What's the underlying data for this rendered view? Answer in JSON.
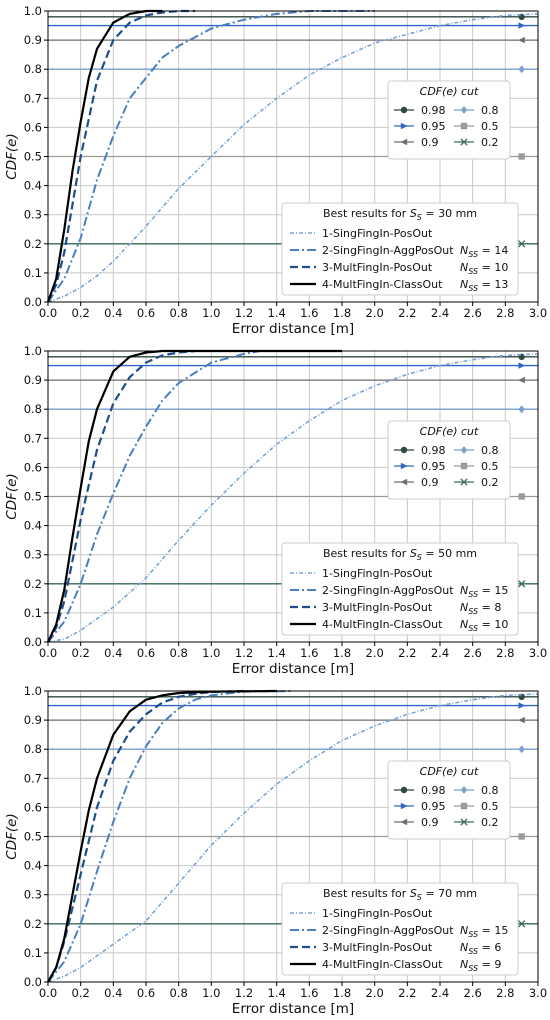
{
  "colors": {
    "c1": "#7ca3d8",
    "c2": "#4a7fc0",
    "c3": "#1f4e8c",
    "c4": "#000000",
    "cut98": "#2d4a45",
    "cut95": "#2f66c8",
    "cut90": "#707070",
    "cut80": "#7aa0d0",
    "cut50": "#9a9a9a",
    "cut20": "#3a6b5a",
    "grid": "#c8c8c8"
  },
  "chart_data": [
    {
      "type": "line",
      "xlabel": "Error distance [m]",
      "ylabel": "CDF(e)",
      "xlim": [
        0,
        3.0
      ],
      "ylim": [
        0,
        1.0
      ],
      "xticks": [
        "0.0",
        "0.2",
        "0.4",
        "0.6",
        "0.8",
        "1.0",
        "1.2",
        "1.4",
        "1.6",
        "1.8",
        "2.0",
        "2.2",
        "2.4",
        "2.6",
        "2.8",
        "3.0"
      ],
      "yticks": [
        "0.0",
        "0.1",
        "0.2",
        "0.3",
        "0.4",
        "0.5",
        "0.6",
        "0.7",
        "0.8",
        "0.9",
        "1.0"
      ],
      "grid": true,
      "legend_cut": {
        "title": "CDF(e) cut",
        "position": "center-right",
        "entries": [
          {
            "label": "0.98",
            "level": 0.98,
            "marker": "circle",
            "color_key": "cut98"
          },
          {
            "label": "0.8",
            "level": 0.8,
            "marker": "diamond",
            "color_key": "cut80"
          },
          {
            "label": "0.95",
            "level": 0.95,
            "marker": "triangle-right",
            "color_key": "cut95"
          },
          {
            "label": "0.5",
            "level": 0.5,
            "marker": "square",
            "color_key": "cut50"
          },
          {
            "label": "0.9",
            "level": 0.9,
            "marker": "triangle-left",
            "color_key": "cut90"
          },
          {
            "label": "0.2",
            "level": 0.2,
            "marker": "x",
            "color_key": "cut20"
          }
        ]
      },
      "legend_best": {
        "title": "Best results for S_S = 30 mm",
        "title_pre": "Best results for ",
        "title_var": "S",
        "title_sub": "S",
        "title_post": " = 30 mm",
        "position": "lower-right",
        "entries": [
          {
            "label": "1-SingFingIn-PosOut",
            "nss": ""
          },
          {
            "label": "2-SingFingIn-AggPosOut",
            "nss": "14"
          },
          {
            "label": "3-MultFingIn-PosOut",
            "nss": "10"
          },
          {
            "label": "4-MultFingIn-ClassOut",
            "nss": "13"
          }
        ]
      },
      "series": [
        {
          "name": "1-SingFingIn-PosOut",
          "style": "dotdash-fine",
          "color_key": "c1",
          "x": [
            0,
            0.1,
            0.2,
            0.3,
            0.4,
            0.5,
            0.6,
            0.8,
            1.0,
            1.2,
            1.4,
            1.6,
            1.8,
            2.0,
            2.2,
            2.4,
            2.6,
            2.8,
            3.0
          ],
          "y": [
            0,
            0.02,
            0.05,
            0.09,
            0.14,
            0.2,
            0.26,
            0.39,
            0.5,
            0.61,
            0.7,
            0.78,
            0.84,
            0.89,
            0.92,
            0.95,
            0.97,
            0.985,
            0.99
          ]
        },
        {
          "name": "2-SingFingIn-AggPosOut",
          "style": "dashdot",
          "color_key": "c2",
          "x": [
            0,
            0.1,
            0.2,
            0.3,
            0.4,
            0.5,
            0.6,
            0.7,
            0.8,
            1.0,
            1.2,
            1.4,
            1.6,
            1.8,
            2.0
          ],
          "y": [
            0,
            0.08,
            0.22,
            0.42,
            0.57,
            0.7,
            0.77,
            0.84,
            0.88,
            0.94,
            0.97,
            0.99,
            1.0,
            1.0,
            1.0
          ]
        },
        {
          "name": "3-MultFingIn-PosOut",
          "style": "dashed",
          "color_key": "c3",
          "x": [
            0,
            0.05,
            0.1,
            0.2,
            0.3,
            0.4,
            0.5,
            0.6,
            0.7,
            0.8,
            0.9
          ],
          "y": [
            0,
            0.06,
            0.17,
            0.5,
            0.76,
            0.9,
            0.96,
            0.985,
            0.995,
            1.0,
            1.0
          ]
        },
        {
          "name": "4-MultFingIn-ClassOut",
          "style": "solid",
          "color_key": "c4",
          "x": [
            0,
            0.05,
            0.1,
            0.15,
            0.2,
            0.25,
            0.3,
            0.4,
            0.5,
            0.6,
            0.7
          ],
          "y": [
            0,
            0.08,
            0.25,
            0.45,
            0.62,
            0.77,
            0.87,
            0.96,
            0.99,
            1.0,
            1.0
          ]
        }
      ]
    },
    {
      "type": "line",
      "xlabel": "Error distance [m]",
      "ylabel": "CDF(e)",
      "xlim": [
        0,
        3.0
      ],
      "ylim": [
        0,
        1.0
      ],
      "xticks": [
        "0.0",
        "0.2",
        "0.4",
        "0.6",
        "0.8",
        "1.0",
        "1.2",
        "1.4",
        "1.6",
        "1.8",
        "2.0",
        "2.2",
        "2.4",
        "2.6",
        "2.8",
        "3.0"
      ],
      "yticks": [
        "0.0",
        "0.1",
        "0.2",
        "0.3",
        "0.4",
        "0.5",
        "0.6",
        "0.7",
        "0.8",
        "0.9",
        "1.0"
      ],
      "grid": true,
      "legend_cut": {
        "title": "CDF(e) cut",
        "position": "center-right",
        "entries": [
          {
            "label": "0.98",
            "level": 0.98,
            "marker": "circle",
            "color_key": "cut98"
          },
          {
            "label": "0.8",
            "level": 0.8,
            "marker": "diamond",
            "color_key": "cut80"
          },
          {
            "label": "0.95",
            "level": 0.95,
            "marker": "triangle-right",
            "color_key": "cut95"
          },
          {
            "label": "0.5",
            "level": 0.5,
            "marker": "square",
            "color_key": "cut50"
          },
          {
            "label": "0.9",
            "level": 0.9,
            "marker": "triangle-left",
            "color_key": "cut90"
          },
          {
            "label": "0.2",
            "level": 0.2,
            "marker": "x",
            "color_key": "cut20"
          }
        ]
      },
      "legend_best": {
        "title": "Best results for S_S = 50 mm",
        "title_pre": "Best results for ",
        "title_var": "S",
        "title_sub": "S",
        "title_post": " = 50 mm",
        "position": "lower-right",
        "entries": [
          {
            "label": "1-SingFingIn-PosOut",
            "nss": ""
          },
          {
            "label": "2-SingFingIn-AggPosOut",
            "nss": "15"
          },
          {
            "label": "3-MultFingIn-PosOut",
            "nss": "8"
          },
          {
            "label": "4-MultFingIn-ClassOut",
            "nss": "10"
          }
        ]
      },
      "series": [
        {
          "name": "1-SingFingIn-PosOut",
          "style": "dotdash-fine",
          "color_key": "c1",
          "x": [
            0,
            0.1,
            0.2,
            0.3,
            0.4,
            0.5,
            0.6,
            0.8,
            1.0,
            1.2,
            1.4,
            1.6,
            1.8,
            2.0,
            2.2,
            2.4,
            2.6,
            2.8,
            3.0
          ],
          "y": [
            0,
            0.01,
            0.04,
            0.08,
            0.12,
            0.17,
            0.22,
            0.35,
            0.47,
            0.58,
            0.68,
            0.76,
            0.83,
            0.88,
            0.92,
            0.95,
            0.97,
            0.985,
            0.99
          ]
        },
        {
          "name": "2-SingFingIn-AggPosOut",
          "style": "dashdot",
          "color_key": "c2",
          "x": [
            0,
            0.1,
            0.2,
            0.3,
            0.4,
            0.5,
            0.6,
            0.7,
            0.8,
            1.0,
            1.2,
            1.3
          ],
          "y": [
            0,
            0.07,
            0.2,
            0.37,
            0.51,
            0.64,
            0.74,
            0.83,
            0.89,
            0.96,
            0.99,
            1.0
          ]
        },
        {
          "name": "3-MultFingIn-PosOut",
          "style": "dashed",
          "color_key": "c3",
          "x": [
            0,
            0.05,
            0.1,
            0.2,
            0.3,
            0.4,
            0.5,
            0.6,
            0.7,
            0.8,
            0.9
          ],
          "y": [
            0,
            0.05,
            0.14,
            0.42,
            0.66,
            0.82,
            0.91,
            0.96,
            0.985,
            0.995,
            1.0
          ]
        },
        {
          "name": "4-MultFingIn-ClassOut",
          "style": "solid",
          "color_key": "c4",
          "x": [
            0,
            0.05,
            0.1,
            0.15,
            0.2,
            0.25,
            0.3,
            0.4,
            0.5,
            0.6,
            0.7,
            1.8
          ],
          "y": [
            0,
            0.06,
            0.18,
            0.36,
            0.53,
            0.69,
            0.8,
            0.93,
            0.98,
            0.995,
            1.0,
            1.0
          ]
        }
      ]
    },
    {
      "type": "line",
      "xlabel": "Error distance [m]",
      "ylabel": "CDF(e)",
      "xlim": [
        0,
        3.0
      ],
      "ylim": [
        0,
        1.0
      ],
      "xticks": [
        "0.0",
        "0.2",
        "0.4",
        "0.6",
        "0.8",
        "1.0",
        "1.2",
        "1.4",
        "1.6",
        "1.8",
        "2.0",
        "2.2",
        "2.4",
        "2.6",
        "2.8",
        "3.0"
      ],
      "yticks": [
        "0.0",
        "0.1",
        "0.2",
        "0.3",
        "0.4",
        "0.5",
        "0.6",
        "0.7",
        "0.8",
        "0.9",
        "1.0"
      ],
      "grid": true,
      "legend_cut": {
        "title": "CDF(e) cut",
        "position": "center-right",
        "entries": [
          {
            "label": "0.98",
            "level": 0.98,
            "marker": "circle",
            "color_key": "cut98"
          },
          {
            "label": "0.8",
            "level": 0.8,
            "marker": "diamond",
            "color_key": "cut80"
          },
          {
            "label": "0.95",
            "level": 0.95,
            "marker": "triangle-right",
            "color_key": "cut95"
          },
          {
            "label": "0.5",
            "level": 0.5,
            "marker": "square",
            "color_key": "cut50"
          },
          {
            "label": "0.9",
            "level": 0.9,
            "marker": "triangle-left",
            "color_key": "cut90"
          },
          {
            "label": "0.2",
            "level": 0.2,
            "marker": "x",
            "color_key": "cut20"
          }
        ]
      },
      "legend_best": {
        "title": "Best results for S_S = 70 mm",
        "title_pre": "Best results for ",
        "title_var": "S",
        "title_sub": "S",
        "title_post": " = 70 mm",
        "position": "lower-right",
        "entries": [
          {
            "label": "1-SingFingIn-PosOut",
            "nss": ""
          },
          {
            "label": "2-SingFingIn-AggPosOut",
            "nss": "15"
          },
          {
            "label": "3-MultFingIn-PosOut",
            "nss": "6"
          },
          {
            "label": "4-MultFingIn-ClassOut",
            "nss": "9"
          }
        ]
      },
      "series": [
        {
          "name": "1-SingFingIn-PosOut",
          "style": "dotdash-fine",
          "color_key": "c1",
          "x": [
            0,
            0.1,
            0.2,
            0.3,
            0.4,
            0.5,
            0.6,
            0.8,
            1.0,
            1.2,
            1.4,
            1.6,
            1.8,
            2.0,
            2.2,
            2.4,
            2.6,
            2.8,
            3.0
          ],
          "y": [
            0,
            0.02,
            0.05,
            0.09,
            0.13,
            0.17,
            0.21,
            0.34,
            0.47,
            0.58,
            0.68,
            0.76,
            0.83,
            0.88,
            0.92,
            0.95,
            0.97,
            0.985,
            0.99
          ]
        },
        {
          "name": "2-SingFingIn-AggPosOut",
          "style": "dashdot",
          "color_key": "c2",
          "x": [
            0,
            0.1,
            0.2,
            0.3,
            0.4,
            0.5,
            0.6,
            0.7,
            0.8,
            0.9,
            1.0,
            1.2,
            1.5
          ],
          "y": [
            0,
            0.07,
            0.2,
            0.38,
            0.55,
            0.7,
            0.81,
            0.89,
            0.94,
            0.97,
            0.985,
            0.998,
            1.0
          ]
        },
        {
          "name": "3-MultFingIn-PosOut",
          "style": "dashed",
          "color_key": "c3",
          "x": [
            0,
            0.05,
            0.1,
            0.2,
            0.3,
            0.4,
            0.5,
            0.6,
            0.7,
            0.8,
            0.9,
            1.0,
            1.2
          ],
          "y": [
            0,
            0.05,
            0.14,
            0.37,
            0.6,
            0.76,
            0.86,
            0.92,
            0.96,
            0.98,
            0.99,
            0.997,
            1.0
          ]
        },
        {
          "name": "4-MultFingIn-ClassOut",
          "style": "solid",
          "color_key": "c4",
          "x": [
            0,
            0.05,
            0.1,
            0.15,
            0.2,
            0.25,
            0.3,
            0.4,
            0.5,
            0.6,
            0.7,
            0.8,
            1.0,
            1.4
          ],
          "y": [
            0,
            0.05,
            0.15,
            0.3,
            0.45,
            0.59,
            0.7,
            0.85,
            0.93,
            0.97,
            0.985,
            0.993,
            0.998,
            1.0
          ]
        }
      ]
    }
  ]
}
